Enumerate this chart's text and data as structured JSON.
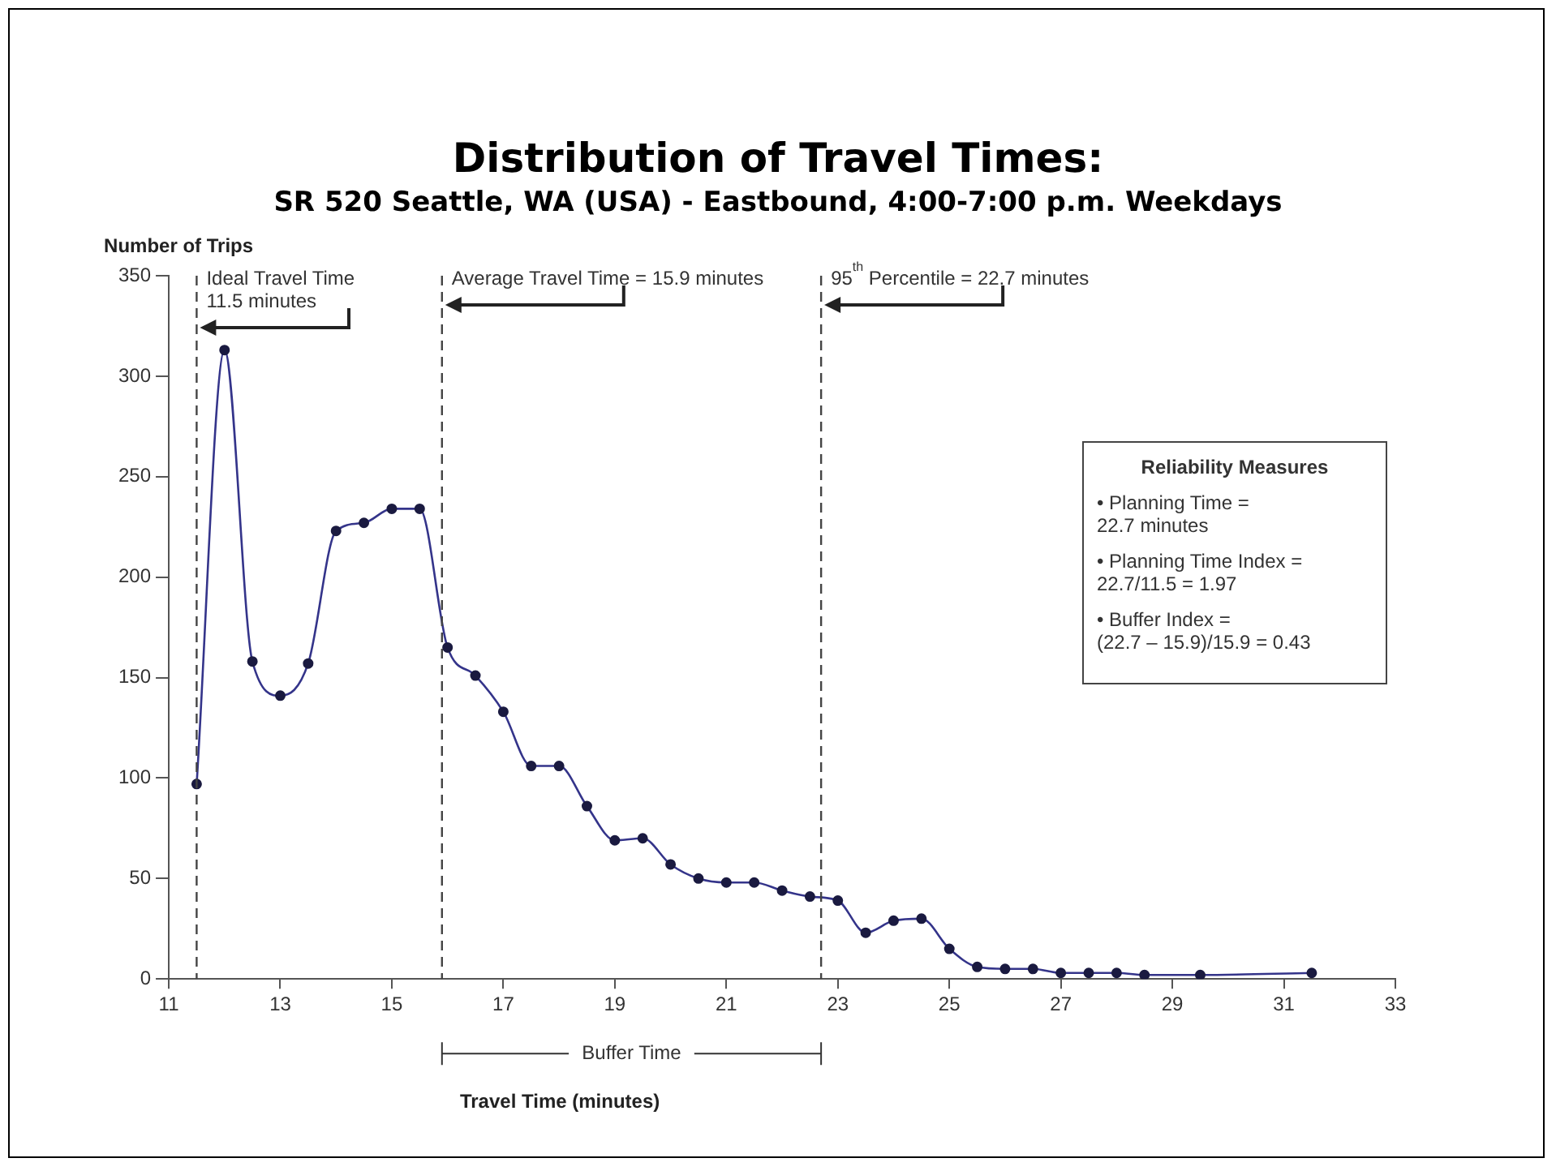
{
  "chart_data": {
    "type": "line",
    "title": "Distribution of Travel Times:",
    "subtitle": "SR 520 Seattle, WA (USA) - Eastbound,  4:00-7:00 p.m. Weekdays",
    "xlabel": "Travel Time (minutes)",
    "ylabel": "Number of Trips",
    "x": [
      11.5,
      12,
      12.5,
      13,
      13.5,
      14,
      14.5,
      15,
      15.5,
      16,
      16.5,
      17,
      17.5,
      18,
      18.5,
      19,
      19.5,
      20,
      20.5,
      21,
      21.5,
      22,
      22.5,
      23,
      23.5,
      24,
      24.5,
      25,
      25.5,
      26,
      26.5,
      27,
      27.5,
      28,
      28.5,
      29.5,
      31.5
    ],
    "series": [
      {
        "color": "#34348a",
        "values": [
          97,
          313,
          158,
          141,
          157,
          223,
          227,
          234,
          234,
          165,
          151,
          133,
          106,
          106,
          86,
          69,
          70,
          57,
          50,
          48,
          48,
          44,
          41,
          39,
          23,
          29,
          30,
          15,
          6,
          5,
          5,
          3,
          3,
          3,
          2,
          2,
          3
        ]
      }
    ],
    "xlim": [
      11,
      33
    ],
    "xticks": [
      11,
      13,
      15,
      17,
      19,
      21,
      23,
      25,
      27,
      29,
      31,
      33
    ],
    "ylim": [
      0,
      350
    ],
    "yticks": [
      0,
      50,
      100,
      150,
      200,
      250,
      300,
      350
    ],
    "grid": false,
    "legend": false,
    "marker": "circle",
    "line_style": "solid",
    "ref_lines": [
      {
        "axis": "x",
        "value": 11.5,
        "label": "Ideal Travel Time\n11.5 minutes",
        "line_style": "dashed"
      },
      {
        "axis": "x",
        "value": 15.9,
        "label": "Average Travel Time = 15.9 minutes",
        "line_style": "dashed"
      },
      {
        "axis": "x",
        "value": 22.7,
        "label": "95$^{th}$ Percentile = 22.7 minutes",
        "line_style": "dashed"
      }
    ],
    "annotations": [
      "Reliability Measures",
      "• Planning Time =\n22.7 minutes",
      "• Planning Time Index =\n22.7/11.5 = 1.97",
      "• Buffer Index =\n(22.7 – 15.9)/15.9 = 0.43",
      "Buffer Time"
    ]
  }
}
